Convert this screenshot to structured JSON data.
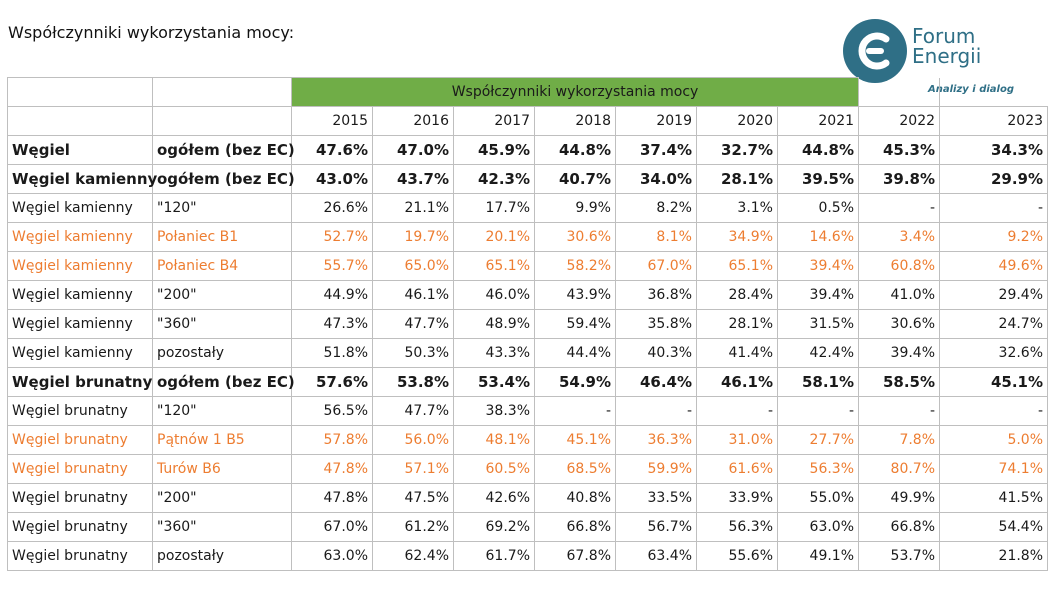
{
  "page_title": "Współczynniki wykorzystania mocy:",
  "logo": {
    "line1": "Forum",
    "line2": "Energii",
    "tagline": "Analizy i dialog",
    "brand_color": "#2f6f86"
  },
  "table": {
    "group_header": "Współczynniki wykorzystania mocy",
    "group_header_color": "#70ad47",
    "highlight_color": "#ed7d31",
    "years": [
      "2015",
      "2016",
      "2017",
      "2018",
      "2019",
      "2020",
      "2021",
      "2022",
      "2023"
    ],
    "rows": [
      {
        "label": "Węgiel",
        "unit": "ogółem (bez EC)",
        "style": "bold",
        "values": [
          "47.6%",
          "47.0%",
          "45.9%",
          "44.8%",
          "37.4%",
          "32.7%",
          "44.8%",
          "45.3%",
          "34.3%"
        ]
      },
      {
        "label": "Węgiel kamienny",
        "unit": "ogółem (bez EC)",
        "style": "bold",
        "values": [
          "43.0%",
          "43.7%",
          "42.3%",
          "40.7%",
          "34.0%",
          "28.1%",
          "39.5%",
          "39.8%",
          "29.9%"
        ]
      },
      {
        "label": "Węgiel kamienny",
        "unit": "\"120\"",
        "style": "normal",
        "values": [
          "26.6%",
          "21.1%",
          "17.7%",
          "9.9%",
          "8.2%",
          "3.1%",
          "0.5%",
          "-",
          "-"
        ]
      },
      {
        "label": "Węgiel kamienny",
        "unit": "Połaniec B1",
        "style": "orange",
        "values": [
          "52.7%",
          "19.7%",
          "20.1%",
          "30.6%",
          "8.1%",
          "34.9%",
          "14.6%",
          "3.4%",
          "9.2%"
        ]
      },
      {
        "label": "Węgiel kamienny",
        "unit": "Połaniec B4",
        "style": "orange",
        "values": [
          "55.7%",
          "65.0%",
          "65.1%",
          "58.2%",
          "67.0%",
          "65.1%",
          "39.4%",
          "60.8%",
          "49.6%"
        ]
      },
      {
        "label": "Węgiel kamienny",
        "unit": "\"200\"",
        "style": "normal",
        "values": [
          "44.9%",
          "46.1%",
          "46.0%",
          "43.9%",
          "36.8%",
          "28.4%",
          "39.4%",
          "41.0%",
          "29.4%"
        ]
      },
      {
        "label": "Węgiel kamienny",
        "unit": "\"360\"",
        "style": "normal",
        "values": [
          "47.3%",
          "47.7%",
          "48.9%",
          "59.4%",
          "35.8%",
          "28.1%",
          "31.5%",
          "30.6%",
          "24.7%"
        ]
      },
      {
        "label": "Węgiel kamienny",
        "unit": "pozostały",
        "style": "normal",
        "values": [
          "51.8%",
          "50.3%",
          "43.3%",
          "44.4%",
          "40.3%",
          "41.4%",
          "42.4%",
          "39.4%",
          "32.6%"
        ]
      },
      {
        "label": "Węgiel brunatny",
        "unit": "ogółem (bez EC)",
        "style": "bold",
        "values": [
          "57.6%",
          "53.8%",
          "53.4%",
          "54.9%",
          "46.4%",
          "46.1%",
          "58.1%",
          "58.5%",
          "45.1%"
        ]
      },
      {
        "label": "Węgiel brunatny",
        "unit": "\"120\"",
        "style": "normal",
        "values": [
          "56.5%",
          "47.7%",
          "38.3%",
          "-",
          "-",
          "-",
          "-",
          "-",
          "-"
        ]
      },
      {
        "label": "Węgiel brunatny",
        "unit": "Pątnów 1 B5",
        "style": "orange",
        "values": [
          "57.8%",
          "56.0%",
          "48.1%",
          "45.1%",
          "36.3%",
          "31.0%",
          "27.7%",
          "7.8%",
          "5.0%"
        ]
      },
      {
        "label": "Węgiel brunatny",
        "unit": "Turów B6",
        "style": "orange",
        "values": [
          "47.8%",
          "57.1%",
          "60.5%",
          "68.5%",
          "59.9%",
          "61.6%",
          "56.3%",
          "80.7%",
          "74.1%"
        ]
      },
      {
        "label": "Węgiel brunatny",
        "unit": "\"200\"",
        "style": "normal",
        "values": [
          "47.8%",
          "47.5%",
          "42.6%",
          "40.8%",
          "33.5%",
          "33.9%",
          "55.0%",
          "49.9%",
          "41.5%"
        ]
      },
      {
        "label": "Węgiel brunatny",
        "unit": "\"360\"",
        "style": "normal",
        "values": [
          "67.0%",
          "61.2%",
          "69.2%",
          "66.8%",
          "56.7%",
          "56.3%",
          "63.0%",
          "66.8%",
          "54.4%"
        ]
      },
      {
        "label": "Węgiel brunatny",
        "unit": "pozostały",
        "style": "normal",
        "values": [
          "63.0%",
          "62.4%",
          "61.7%",
          "67.8%",
          "63.4%",
          "55.6%",
          "49.1%",
          "53.7%",
          "21.8%"
        ]
      }
    ]
  }
}
